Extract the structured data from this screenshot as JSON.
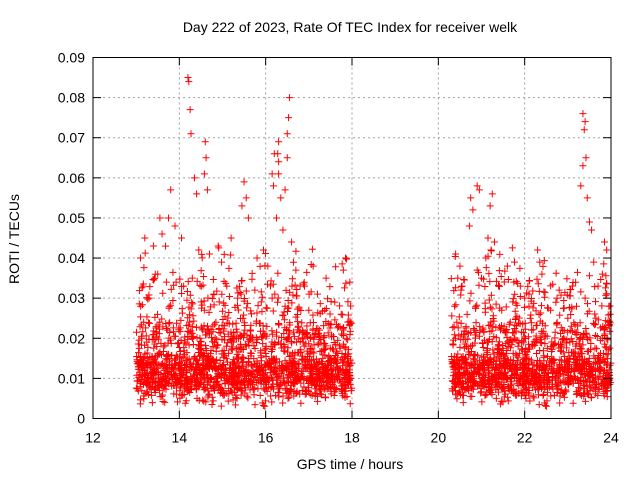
{
  "chart_data": {
    "type": "scatter",
    "title": "Day 222 of 2023, Rate Of TEC Index for receiver welk",
    "xlabel": "GPS time / hours",
    "ylabel": "ROTI / TECUs",
    "xlim": [
      12,
      24
    ],
    "ylim": [
      0,
      0.09
    ],
    "xticks": [
      12,
      14,
      16,
      18,
      20,
      22,
      24
    ],
    "xtick_labels": [
      "12",
      "14",
      "16",
      "18",
      "20",
      "22",
      "24"
    ],
    "yticks": [
      0,
      0.01,
      0.02,
      0.03,
      0.04,
      0.05,
      0.06,
      0.07,
      0.08,
      0.09
    ],
    "ytick_labels": [
      "0",
      "0.01",
      "0.02",
      "0.03",
      "0.04",
      "0.05",
      "0.06",
      "0.07",
      "0.08",
      "0.09"
    ],
    "grid": true,
    "marker": "+",
    "series": [
      {
        "name": "ROTI",
        "color": "#ff0000",
        "segments": [
          [
            13.0,
            18.0
          ],
          [
            20.3,
            24.0
          ]
        ],
        "points": [
          [
            14.2,
            0.085
          ],
          [
            14.22,
            0.084
          ],
          [
            14.25,
            0.077
          ],
          [
            14.27,
            0.071
          ],
          [
            16.55,
            0.08
          ],
          [
            16.53,
            0.075
          ],
          [
            16.5,
            0.071
          ],
          [
            16.3,
            0.069
          ],
          [
            16.28,
            0.066
          ],
          [
            16.3,
            0.064
          ],
          [
            16.2,
            0.066
          ],
          [
            16.3,
            0.061
          ],
          [
            16.15,
            0.061
          ],
          [
            16.18,
            0.058
          ],
          [
            16.5,
            0.065
          ],
          [
            16.45,
            0.057
          ],
          [
            14.6,
            0.069
          ],
          [
            14.62,
            0.065
          ],
          [
            14.58,
            0.061
          ],
          [
            14.65,
            0.057
          ],
          [
            14.35,
            0.06
          ],
          [
            14.4,
            0.056
          ],
          [
            13.8,
            0.057
          ],
          [
            13.75,
            0.05
          ],
          [
            13.55,
            0.05
          ],
          [
            13.6,
            0.046
          ],
          [
            13.9,
            0.048
          ],
          [
            14.05,
            0.045
          ],
          [
            15.5,
            0.059
          ],
          [
            15.55,
            0.055
          ],
          [
            15.45,
            0.053
          ],
          [
            15.6,
            0.05
          ],
          [
            16.35,
            0.055
          ],
          [
            16.25,
            0.05
          ],
          [
            16.4,
            0.047
          ],
          [
            16.6,
            0.044
          ],
          [
            15.2,
            0.045
          ],
          [
            14.9,
            0.043
          ],
          [
            14.7,
            0.041
          ],
          [
            14.45,
            0.042
          ],
          [
            13.2,
            0.045
          ],
          [
            13.4,
            0.043
          ],
          [
            13.1,
            0.04
          ],
          [
            15.8,
            0.04
          ],
          [
            15.95,
            0.042
          ],
          [
            16.05,
            0.038
          ],
          [
            16.7,
            0.037
          ],
          [
            17.1,
            0.038
          ],
          [
            17.85,
            0.04
          ],
          [
            17.8,
            0.037
          ],
          [
            17.95,
            0.034
          ],
          [
            17.4,
            0.035
          ],
          [
            17.2,
            0.031
          ],
          [
            16.9,
            0.033
          ],
          [
            13.5,
            0.036
          ],
          [
            13.7,
            0.034
          ],
          [
            14.1,
            0.033
          ],
          [
            14.3,
            0.035
          ],
          [
            14.8,
            0.031
          ],
          [
            15.1,
            0.033
          ],
          [
            15.35,
            0.03
          ],
          [
            15.75,
            0.032
          ],
          [
            16.15,
            0.03
          ],
          [
            16.45,
            0.028
          ],
          [
            17.0,
            0.027
          ],
          [
            17.6,
            0.029
          ],
          [
            17.75,
            0.026
          ],
          [
            13.3,
            0.03
          ],
          [
            20.4,
            0.041
          ],
          [
            20.5,
            0.038
          ],
          [
            20.45,
            0.035
          ],
          [
            20.55,
            0.033
          ],
          [
            20.75,
            0.055
          ],
          [
            20.8,
            0.052
          ],
          [
            20.72,
            0.048
          ],
          [
            20.9,
            0.058
          ],
          [
            20.95,
            0.057
          ],
          [
            21.25,
            0.056
          ],
          [
            21.2,
            0.053
          ],
          [
            21.15,
            0.045
          ],
          [
            21.22,
            0.042
          ],
          [
            21.3,
            0.044
          ],
          [
            21.1,
            0.04
          ],
          [
            20.9,
            0.037
          ],
          [
            21.0,
            0.035
          ],
          [
            21.4,
            0.033
          ],
          [
            21.6,
            0.038
          ],
          [
            21.75,
            0.034
          ],
          [
            21.9,
            0.033
          ],
          [
            22.0,
            0.03
          ],
          [
            22.3,
            0.042
          ],
          [
            22.35,
            0.039
          ],
          [
            22.4,
            0.036
          ],
          [
            22.1,
            0.028
          ],
          [
            22.6,
            0.027
          ],
          [
            22.8,
            0.032
          ],
          [
            22.75,
            0.03
          ],
          [
            23.0,
            0.025
          ],
          [
            23.2,
            0.028
          ],
          [
            23.4,
            0.03
          ],
          [
            23.35,
            0.076
          ],
          [
            23.4,
            0.074
          ],
          [
            23.38,
            0.072
          ],
          [
            23.42,
            0.065
          ],
          [
            23.35,
            0.063
          ],
          [
            23.3,
            0.058
          ],
          [
            23.45,
            0.055
          ],
          [
            23.5,
            0.049
          ],
          [
            23.55,
            0.047
          ],
          [
            23.85,
            0.044
          ],
          [
            23.9,
            0.042
          ],
          [
            23.6,
            0.039
          ],
          [
            23.8,
            0.036
          ],
          [
            23.7,
            0.033
          ],
          [
            23.9,
            0.031
          ],
          [
            23.95,
            0.028
          ],
          [
            23.65,
            0.025
          ],
          [
            23.98,
            0.026
          ]
        ]
      }
    ]
  }
}
